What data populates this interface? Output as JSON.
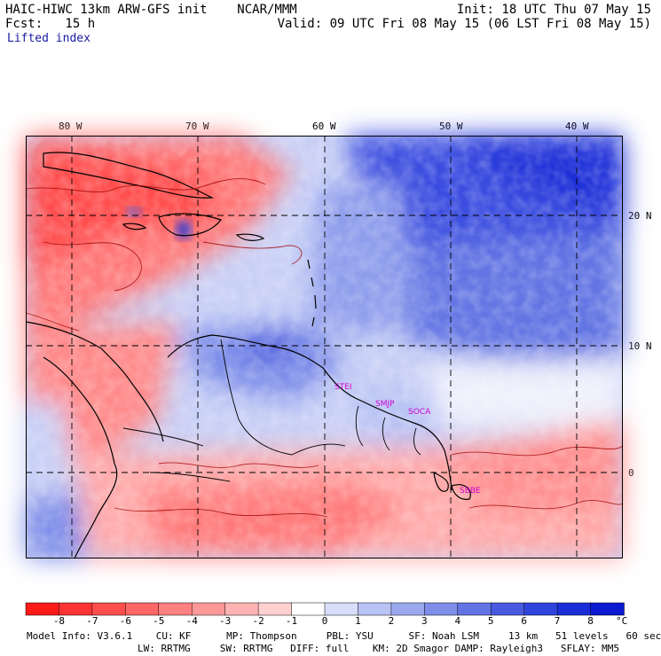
{
  "header": {
    "title_left": "HAIC-HIWC 13km ARW-GFS init    NCAR/MMM",
    "fcst_left": "Fcst:   15 h",
    "field": "Lifted index",
    "init_right": "Init: 18 UTC Thu 07 May 15",
    "valid_right": "Valid: 09 UTC Fri 08 May 15 (06 LST Fri 08 May 15)"
  },
  "map": {
    "lon_labels": [
      "80 W",
      "70 W",
      "60 W",
      "50 W",
      "40 W"
    ],
    "lat_labels": [
      "20 N",
      "10 N",
      "0"
    ],
    "stations": [
      "STEI",
      "SMJP",
      "SOCA",
      "SBBE"
    ]
  },
  "colorbar": {
    "labels": [
      "-8",
      "-7",
      "-6",
      "-5",
      "-4",
      "-3",
      "-2",
      "-1",
      "0",
      "1",
      "2",
      "3",
      "4",
      "5",
      "6",
      "7",
      "8"
    ],
    "unit": "°C",
    "colors": [
      "#ff1a1a",
      "#ff3333",
      "#ff4d4d",
      "#ff6666",
      "#ff8080",
      "#ff9999",
      "#ffb3b3",
      "#ffd0d0",
      "#ffffff",
      "#d8defa",
      "#b8c2f4",
      "#9aa8ef",
      "#7e8ee9",
      "#6274e3",
      "#485be0",
      "#2f44dc",
      "#1a2ed8",
      "#0d1ad2"
    ]
  },
  "model_info": {
    "line1": "Model Info: V3.6.1    CU: KF      MP: Thompson     PBL: YSU      SF: Noah LSM     13 km   51 levels   60 sec",
    "line2": "LW: RRTMG     SW: RRTMG   DIFF: full    KM: 2D Smagor DAMP: Rayleigh3   SFLAY: MM5"
  }
}
